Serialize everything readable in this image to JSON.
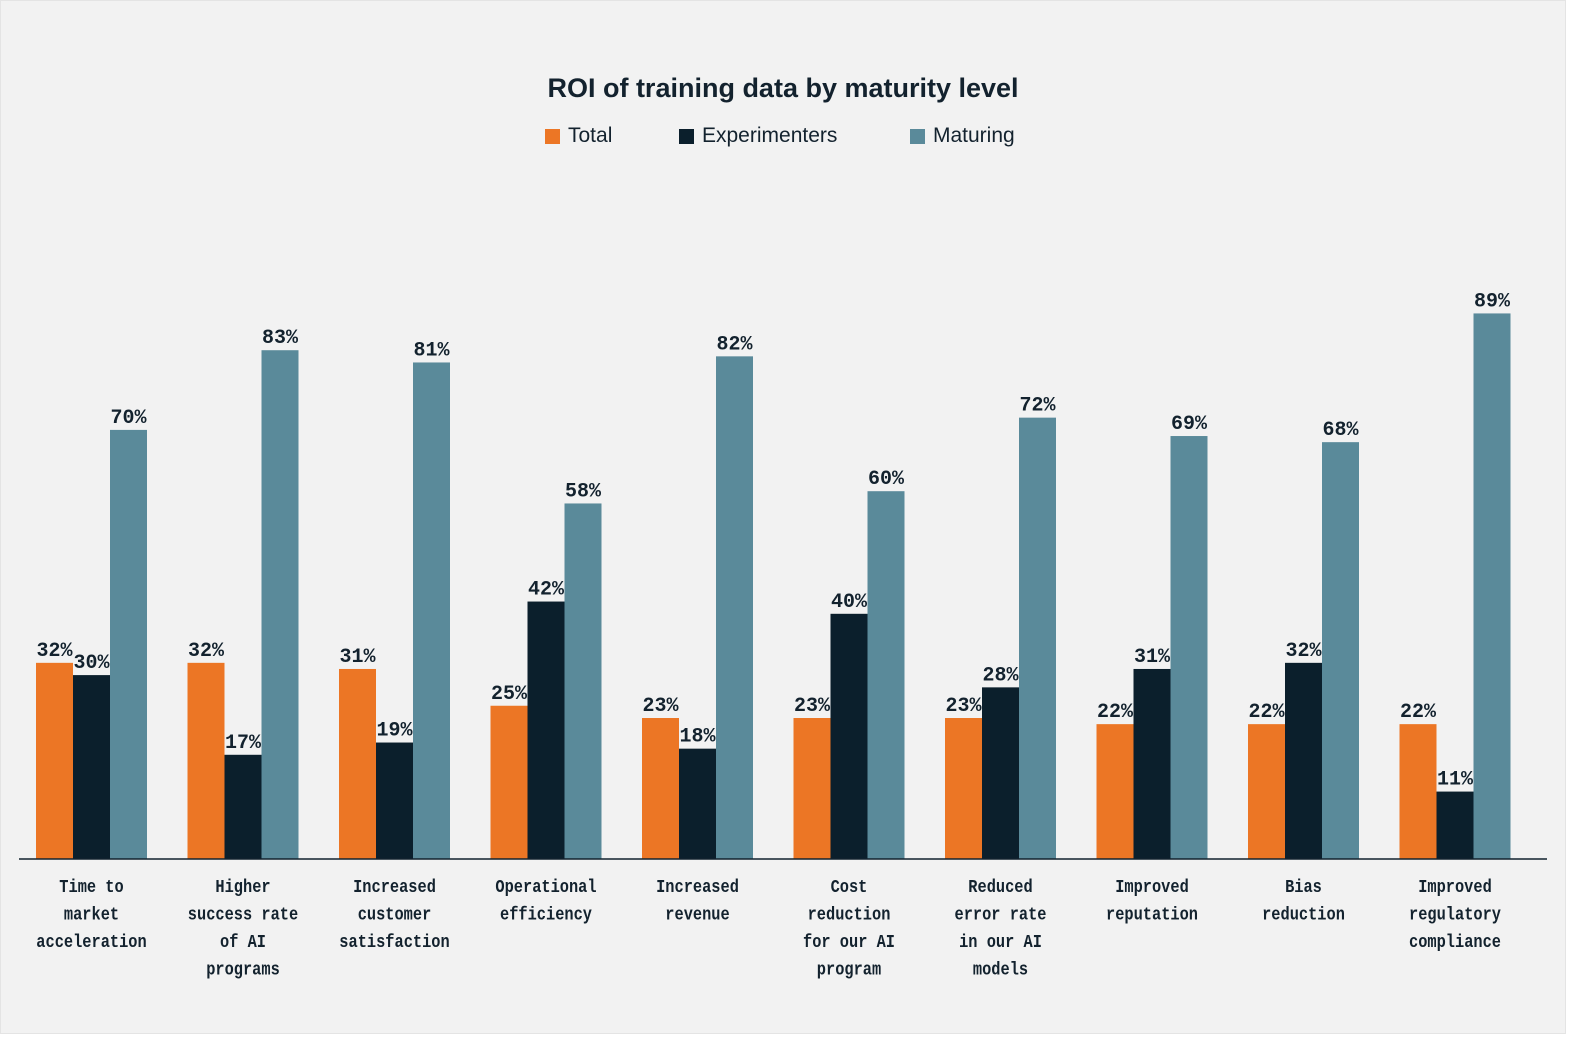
{
  "chart_data": {
    "type": "bar",
    "title": "ROI of training data by maturity level",
    "xlabel": "",
    "ylabel": "",
    "ylim": [
      0,
      100
    ],
    "grid": false,
    "legend_position": "top-center",
    "value_format": "{v}%",
    "categories": [
      [
        "Time to",
        "market",
        "acceleration"
      ],
      [
        "Higher",
        "success rate",
        "of AI",
        "programs"
      ],
      [
        "Increased",
        "customer",
        "satisfaction"
      ],
      [
        "Operational",
        "efficiency"
      ],
      [
        "Increased",
        "revenue"
      ],
      [
        "Cost",
        "reduction",
        "for our AI",
        "program"
      ],
      [
        "Reduced",
        "error rate",
        "in our AI",
        "models"
      ],
      [
        "Improved",
        "reputation"
      ],
      [
        "Bias",
        "reduction"
      ],
      [
        "Improved",
        "regulatory",
        "compliance"
      ]
    ],
    "series": [
      {
        "name": "Total",
        "color": "#ec7625",
        "values": [
          32,
          32,
          31,
          25,
          23,
          23,
          23,
          22,
          22,
          22
        ]
      },
      {
        "name": "Experimenters",
        "color": "#0b1f2c",
        "values": [
          30,
          17,
          19,
          42,
          18,
          40,
          28,
          31,
          32,
          11
        ]
      },
      {
        "name": "Maturing",
        "color": "#5a8a9a",
        "values": [
          70,
          83,
          81,
          58,
          82,
          60,
          72,
          69,
          68,
          89
        ]
      }
    ]
  }
}
